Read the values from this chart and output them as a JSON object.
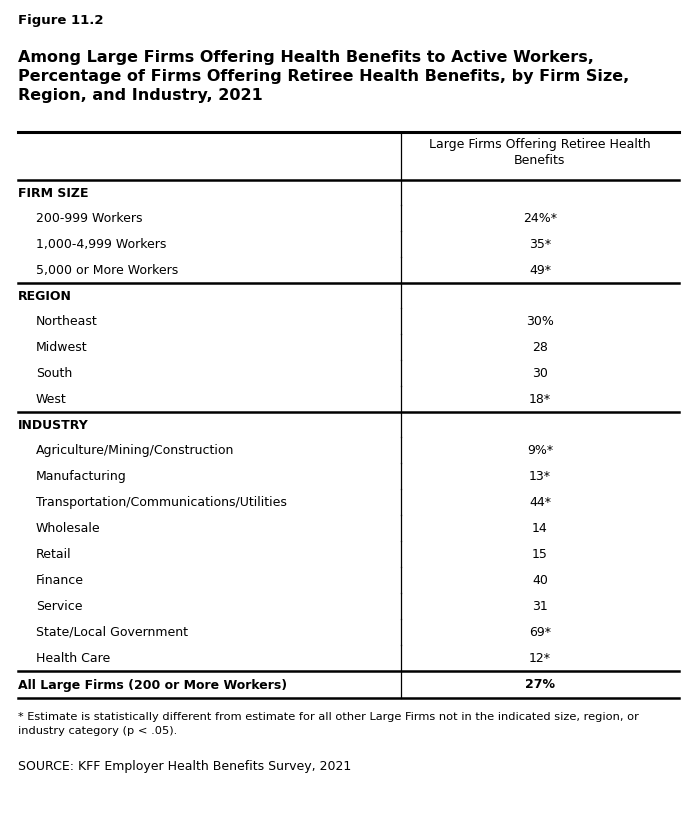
{
  "figure_label": "Figure 11.2",
  "title_lines": [
    "Among Large Firms Offering Health Benefits to Active Workers,",
    "Percentage of Firms Offering Retiree Health Benefits, by Firm Size,",
    "Region, and Industry, 2021"
  ],
  "col_header": "Large Firms Offering Retiree Health\nBenefits",
  "sections": [
    {
      "header": "FIRM SIZE",
      "rows": [
        {
          "label": "200-999 Workers",
          "value": "24%*",
          "indent": true
        },
        {
          "label": "1,000-4,999 Workers",
          "value": "35*",
          "indent": true
        },
        {
          "label": "5,000 or More Workers",
          "value": "49*",
          "indent": true
        }
      ]
    },
    {
      "header": "REGION",
      "rows": [
        {
          "label": "Northeast",
          "value": "30%",
          "indent": true
        },
        {
          "label": "Midwest",
          "value": "28",
          "indent": true
        },
        {
          "label": "South",
          "value": "30",
          "indent": true
        },
        {
          "label": "West",
          "value": "18*",
          "indent": true
        }
      ]
    },
    {
      "header": "INDUSTRY",
      "rows": [
        {
          "label": "Agriculture/Mining/Construction",
          "value": "9%*",
          "indent": true
        },
        {
          "label": "Manufacturing",
          "value": "13*",
          "indent": true
        },
        {
          "label": "Transportation/Communications/Utilities",
          "value": "44*",
          "indent": true
        },
        {
          "label": "Wholesale",
          "value": "14",
          "indent": true
        },
        {
          "label": "Retail",
          "value": "15",
          "indent": true
        },
        {
          "label": "Finance",
          "value": "40",
          "indent": true
        },
        {
          "label": "Service",
          "value": "31",
          "indent": true
        },
        {
          "label": "State/Local Government",
          "value": "69*",
          "indent": true
        },
        {
          "label": "Health Care",
          "value": "12*",
          "indent": true
        }
      ]
    }
  ],
  "total_row": {
    "label": "All Large Firms (200 or More Workers)",
    "value": "27%"
  },
  "footnote": "* Estimate is statistically different from estimate for all other Large Firms not in the indicated size, region, or\nindustry category (p < .05).",
  "source": "SOURCE: KFF Employer Health Benefits Survey, 2021",
  "col_split": 0.575,
  "background_color": "#ffffff",
  "text_color": "#000000",
  "fig_label_fontsize": 9.5,
  "title_fontsize": 11.5,
  "col_header_fontsize": 9.0,
  "body_fontsize": 9.0,
  "footnote_fontsize": 8.2,
  "source_fontsize": 9.0
}
